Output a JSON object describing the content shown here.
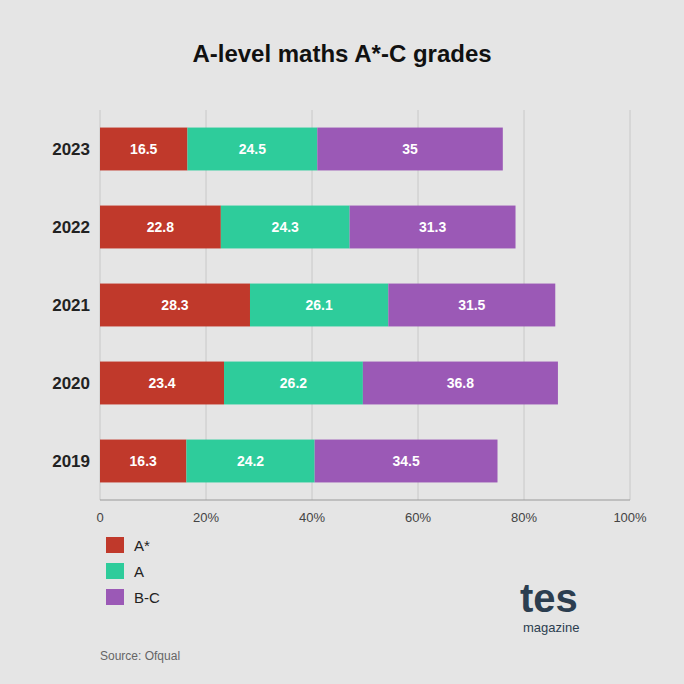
{
  "chart_data": {
    "type": "bar",
    "orientation": "horizontal",
    "stacked": true,
    "title": "A-level maths A*-C grades",
    "categories": [
      "2019",
      "2020",
      "2021",
      "2022",
      "2023"
    ],
    "series": [
      {
        "name": "A*",
        "color": "#c0392b",
        "values": [
          16.3,
          23.4,
          28.3,
          22.8,
          16.5
        ]
      },
      {
        "name": "A",
        "color": "#2ecc9b",
        "values": [
          24.2,
          26.2,
          26.1,
          24.3,
          24.5
        ]
      },
      {
        "name": "B-C",
        "color": "#9b59b6",
        "values": [
          34.5,
          36.8,
          31.5,
          31.3,
          35.0
        ],
        "value_labels": [
          "34.5",
          "36.8",
          "31.5",
          "31.3",
          "35"
        ]
      }
    ],
    "xlim": [
      0,
      100
    ],
    "xticks": [
      0,
      {
        "value": 20,
        "label": "20%"
      },
      {
        "value": 40,
        "label": "40%"
      },
      {
        "value": 60,
        "label": "60%"
      },
      {
        "value": 80,
        "label": "80%"
      },
      {
        "value": 100,
        "label": "100%"
      }
    ],
    "grid": true,
    "data_labels": true,
    "legend": "bottom",
    "annotations": [
      "Source: Ofqual",
      "tes",
      "magazine"
    ]
  }
}
